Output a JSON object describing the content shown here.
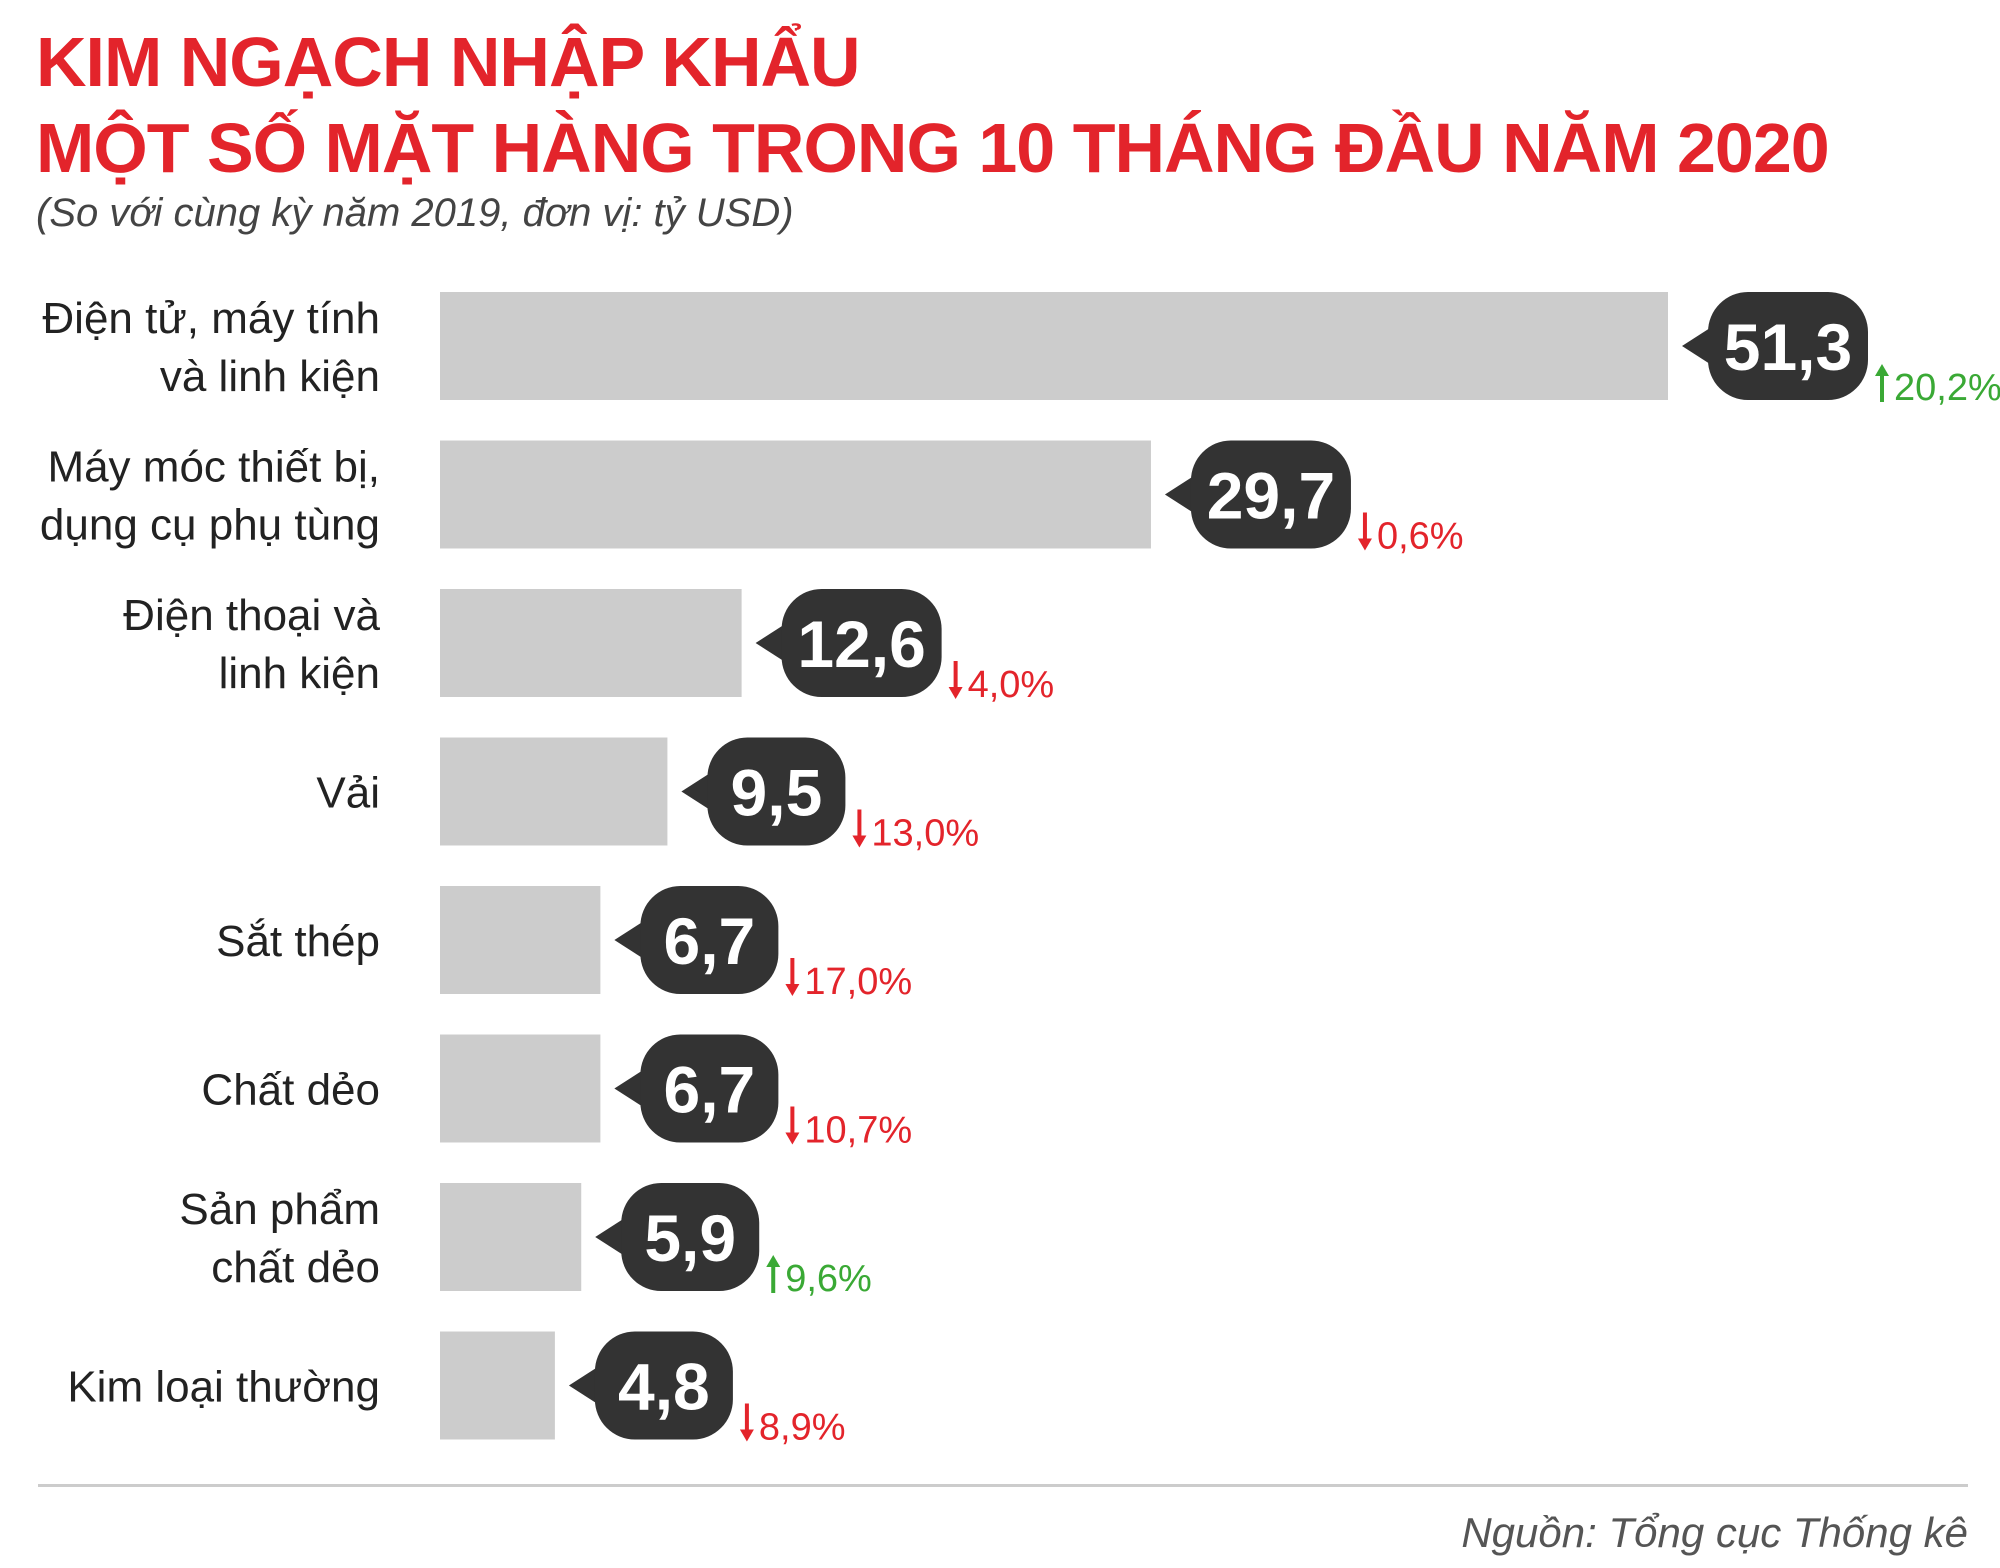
{
  "colors": {
    "title": "#e3242b",
    "subtitle": "#444444",
    "bar": "#cccccc",
    "bubble": "#333333",
    "label": "#222222",
    "up": "#3aa935",
    "down": "#e3242b",
    "rule": "#cccccc",
    "source": "#555555"
  },
  "header": {
    "title_line1": "KIM NGẠCH NHẬP KHẨU",
    "title_line2": "MỘT SỐ MẶT HÀNG TRONG 10 THÁNG ĐẦU NĂM 2020",
    "subtitle": "(So với cùng kỳ năm 2019, đơn vị: tỷ USD)"
  },
  "footer": {
    "source": "Nguồn: Tổng cục Thống kê"
  },
  "chart_data": {
    "type": "bar",
    "orientation": "horizontal",
    "categories": [
      [
        "Điện tử, máy tính",
        "và linh kiện"
      ],
      [
        "Máy móc thiết bị,",
        "dụng cụ phụ tùng"
      ],
      [
        "Điện thoại và",
        "linh kiện"
      ],
      [
        "Vải"
      ],
      [
        "Sắt thép"
      ],
      [
        "Chất dẻo"
      ],
      [
        "Sản phẩm",
        "chất dẻo"
      ],
      [
        "Kim loại thường"
      ]
    ],
    "values": [
      51.3,
      29.7,
      12.6,
      9.5,
      6.7,
      6.7,
      5.9,
      4.8
    ],
    "value_labels": [
      "51,3",
      "29,7",
      "12,6",
      "9,5",
      "6,7",
      "6,7",
      "5,9",
      "4,8"
    ],
    "changes": [
      {
        "direction": "up",
        "label": "20,2%"
      },
      {
        "direction": "down",
        "label": "0,6%"
      },
      {
        "direction": "down",
        "label": "4,0%"
      },
      {
        "direction": "down",
        "label": "13,0%"
      },
      {
        "direction": "down",
        "label": "17,0%"
      },
      {
        "direction": "down",
        "label": "10,7%"
      },
      {
        "direction": "up",
        "label": "9,6%"
      },
      {
        "direction": "down",
        "label": "8,9%"
      }
    ],
    "xlim": [
      0,
      51.3
    ],
    "grid": false,
    "legend": "none"
  }
}
